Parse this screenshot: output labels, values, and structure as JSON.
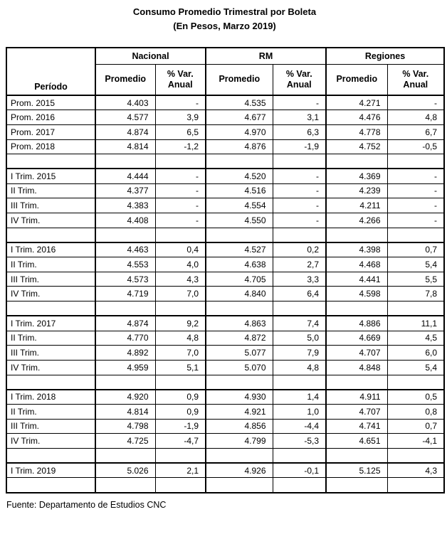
{
  "title": "Consumo Promedio Trimestral por Boleta",
  "subtitle": "(En Pesos, Marzo 2019)",
  "table": {
    "period_header": "Período",
    "groups": [
      {
        "label": "Nacional"
      },
      {
        "label": "RM"
      },
      {
        "label": "Regiones"
      }
    ],
    "sub_headers": {
      "promedio": "Promedio",
      "var_line1": "% Var.",
      "var_line2": "Anual"
    },
    "rows": [
      {
        "period": "Prom. 2015",
        "cells": [
          "4.403",
          "-",
          "4.535",
          "-",
          "4.271",
          "-"
        ]
      },
      {
        "period": "Prom. 2016",
        "cells": [
          "4.577",
          "3,9",
          "4.677",
          "3,1",
          "4.476",
          "4,8"
        ]
      },
      {
        "period": "Prom. 2017",
        "cells": [
          "4.874",
          "6,5",
          "4.970",
          "6,3",
          "4.778",
          "6,7"
        ]
      },
      {
        "period": "Prom. 2018",
        "cells": [
          "4.814",
          "-1,2",
          "4.876",
          "-1,9",
          "4.752",
          "-0,5"
        ]
      },
      {
        "blank": true
      },
      {
        "period": "I Trim. 2015",
        "cells": [
          "4.444",
          "-",
          "4.520",
          "-",
          "4.369",
          "-"
        ]
      },
      {
        "period": "II Trim.",
        "cells": [
          "4.377",
          "-",
          "4.516",
          "-",
          "4.239",
          "-"
        ]
      },
      {
        "period": "III Trim.",
        "cells": [
          "4.383",
          "-",
          "4.554",
          "-",
          "4.211",
          "-"
        ]
      },
      {
        "period": "IV Trim.",
        "cells": [
          "4.408",
          "-",
          "4.550",
          "-",
          "4.266",
          "-"
        ]
      },
      {
        "blank": true
      },
      {
        "period": "I Trim. 2016",
        "cells": [
          "4.463",
          "0,4",
          "4.527",
          "0,2",
          "4.398",
          "0,7"
        ]
      },
      {
        "period": "II Trim.",
        "cells": [
          "4.553",
          "4,0",
          "4.638",
          "2,7",
          "4.468",
          "5,4"
        ]
      },
      {
        "period": "III Trim.",
        "cells": [
          "4.573",
          "4,3",
          "4.705",
          "3,3",
          "4.441",
          "5,5"
        ]
      },
      {
        "period": "IV Trim.",
        "cells": [
          "4.719",
          "7,0",
          "4.840",
          "6,4",
          "4.598",
          "7,8"
        ]
      },
      {
        "blank": true
      },
      {
        "period": "I Trim. 2017",
        "cells": [
          "4.874",
          "9,2",
          "4.863",
          "7,4",
          "4.886",
          "11,1"
        ]
      },
      {
        "period": "II Trim.",
        "cells": [
          "4.770",
          "4,8",
          "4.872",
          "5,0",
          "4.669",
          "4,5"
        ]
      },
      {
        "period": "III Trim.",
        "cells": [
          "4.892",
          "7,0",
          "5.077",
          "7,9",
          "4.707",
          "6,0"
        ]
      },
      {
        "period": "IV Trim.",
        "cells": [
          "4.959",
          "5,1",
          "5.070",
          "4,8",
          "4.848",
          "5,4"
        ]
      },
      {
        "blank": true
      },
      {
        "period": "I Trim. 2018",
        "cells": [
          "4.920",
          "0,9",
          "4.930",
          "1,4",
          "4.911",
          "0,5"
        ]
      },
      {
        "period": "II Trim.",
        "cells": [
          "4.814",
          "0,9",
          "4.921",
          "1,0",
          "4.707",
          "0,8"
        ]
      },
      {
        "period": "III Trim.",
        "cells": [
          "4.798",
          "-1,9",
          "4.856",
          "-4,4",
          "4.741",
          "0,7"
        ]
      },
      {
        "period": "IV Trim.",
        "cells": [
          "4.725",
          "-4,7",
          "4.799",
          "-5,3",
          "4.651",
          "-4,1"
        ]
      },
      {
        "blank": true
      },
      {
        "period": "I Trim. 2019",
        "cells": [
          "5.026",
          "2,1",
          "4.926",
          "-0,1",
          "5.125",
          "4,3"
        ]
      },
      {
        "blank": true
      }
    ]
  },
  "footer": {
    "source": "Fuente: Departamento de Estudios CNC"
  }
}
